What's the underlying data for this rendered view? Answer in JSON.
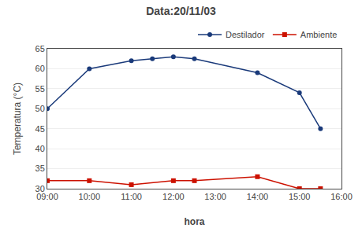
{
  "chart_data": {
    "type": "line",
    "title": "Data:20/11/03",
    "x_label": "hora",
    "y_label": "Temperatura (°C)",
    "series": [
      {
        "name": "Destilador",
        "color": "#1A3A7A",
        "marker": "circle",
        "x": [
          9.0,
          10.0,
          11.0,
          11.5,
          12.0,
          12.5,
          14.0,
          15.0,
          15.5
        ],
        "values": [
          50,
          60,
          62,
          62.5,
          63,
          62.5,
          59,
          54,
          45
        ]
      },
      {
        "name": "Ambiente",
        "color": "#CC1100",
        "marker": "square",
        "x": [
          9.0,
          10.0,
          11.0,
          12.0,
          12.5,
          14.0,
          15.0,
          15.5
        ],
        "values": [
          32,
          32,
          31,
          32,
          32,
          33,
          30,
          30
        ]
      }
    ],
    "xlim": [
      9.0,
      16.0
    ],
    "xticks": [
      {
        "value": 9.0,
        "label": "09:00"
      },
      {
        "value": 10.0,
        "label": "10:00"
      },
      {
        "value": 11.0,
        "label": "11:00"
      },
      {
        "value": 12.0,
        "label": "12:00"
      },
      {
        "value": 13.0,
        "label": "13:00"
      },
      {
        "value": 14.0,
        "label": "14:00"
      },
      {
        "value": 15.0,
        "label": "15:00"
      },
      {
        "value": 16.0,
        "label": "16:00"
      }
    ],
    "ylim": [
      30,
      65
    ],
    "yticks": [
      30,
      35,
      40,
      45,
      50,
      55,
      60,
      65
    ],
    "grid": "y",
    "legend": "upper right"
  }
}
